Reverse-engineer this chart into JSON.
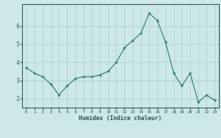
{
  "x": [
    0,
    1,
    2,
    3,
    4,
    5,
    6,
    7,
    8,
    9,
    10,
    11,
    12,
    13,
    14,
    15,
    16,
    17,
    18,
    19,
    20,
    21,
    22,
    23
  ],
  "y": [
    3.7,
    3.4,
    3.2,
    2.8,
    2.2,
    2.7,
    3.1,
    3.2,
    3.2,
    3.3,
    3.5,
    4.0,
    4.8,
    5.2,
    5.6,
    6.7,
    6.3,
    5.1,
    3.4,
    2.7,
    3.4,
    1.8,
    2.2,
    1.9
  ],
  "xlabel": "Humidex (Indice chaleur)",
  "line_color": "#2e7d6e",
  "marker": "+",
  "bg_color": "#cce8e8",
  "grid_color": "#aacaca",
  "axis_color": "#2e5050",
  "ylim": [
    1.5,
    7.2
  ],
  "xlim": [
    -0.5,
    23.5
  ],
  "yticks": [
    2,
    3,
    4,
    5,
    6
  ],
  "xticks": [
    0,
    1,
    2,
    3,
    4,
    5,
    6,
    7,
    8,
    9,
    10,
    11,
    12,
    13,
    14,
    15,
    16,
    17,
    18,
    19,
    20,
    21,
    22,
    23
  ]
}
